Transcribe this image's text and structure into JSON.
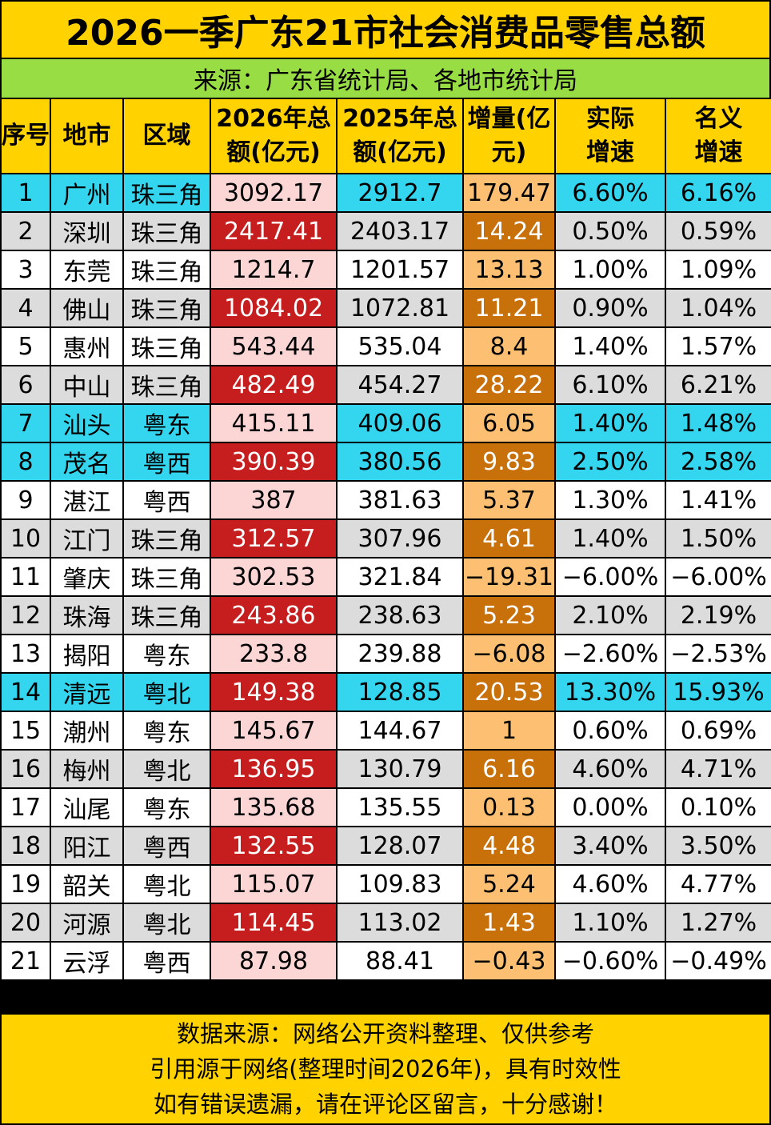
{
  "title": "2026一季广东21市社会消费品零售总额",
  "source": "来源：广东省统计局、各地市统计局",
  "headers": {
    "index": "序号",
    "city": "地市",
    "region": "区域",
    "total_2026": "2026年总额(亿元)",
    "total_2025": "2025年总额(亿元)",
    "increase": "增量(亿元)",
    "real_growth": "实际增速",
    "nominal_growth": "名义增速"
  },
  "rows": [
    {
      "no": "1",
      "city": "广州",
      "region": "珠三角",
      "v2026": "3092.17",
      "v2025": "2912.7",
      "inc": "179.47",
      "real": "6.60%",
      "nominal": "6.16%"
    },
    {
      "no": "2",
      "city": "深圳",
      "region": "珠三角",
      "v2026": "2417.41",
      "v2025": "2403.17",
      "inc": "14.24",
      "real": "0.50%",
      "nominal": "0.59%"
    },
    {
      "no": "3",
      "city": "东莞",
      "region": "珠三角",
      "v2026": "1214.7",
      "v2025": "1201.57",
      "inc": "13.13",
      "real": "1.00%",
      "nominal": "1.09%"
    },
    {
      "no": "4",
      "city": "佛山",
      "region": "珠三角",
      "v2026": "1084.02",
      "v2025": "1072.81",
      "inc": "11.21",
      "real": "0.90%",
      "nominal": "1.04%"
    },
    {
      "no": "5",
      "city": "惠州",
      "region": "珠三角",
      "v2026": "543.44",
      "v2025": "535.04",
      "inc": "8.4",
      "real": "1.40%",
      "nominal": "1.57%"
    },
    {
      "no": "6",
      "city": "中山",
      "region": "珠三角",
      "v2026": "482.49",
      "v2025": "454.27",
      "inc": "28.22",
      "real": "6.10%",
      "nominal": "6.21%"
    },
    {
      "no": "7",
      "city": "汕头",
      "region": "粤东",
      "v2026": "415.11",
      "v2025": "409.06",
      "inc": "6.05",
      "real": "1.40%",
      "nominal": "1.48%"
    },
    {
      "no": "8",
      "city": "茂名",
      "region": "粤西",
      "v2026": "390.39",
      "v2025": "380.56",
      "inc": "9.83",
      "real": "2.50%",
      "nominal": "2.58%"
    },
    {
      "no": "9",
      "city": "湛江",
      "region": "粤西",
      "v2026": "387",
      "v2025": "381.63",
      "inc": "5.37",
      "real": "1.30%",
      "nominal": "1.41%"
    },
    {
      "no": "10",
      "city": "江门",
      "region": "珠三角",
      "v2026": "312.57",
      "v2025": "307.96",
      "inc": "4.61",
      "real": "1.40%",
      "nominal": "1.50%"
    },
    {
      "no": "11",
      "city": "肇庆",
      "region": "珠三角",
      "v2026": "302.53",
      "v2025": "321.84",
      "inc": "−19.31",
      "real": "−6.00%",
      "nominal": "−6.00%"
    },
    {
      "no": "12",
      "city": "珠海",
      "region": "珠三角",
      "v2026": "243.86",
      "v2025": "238.63",
      "inc": "5.23",
      "real": "2.10%",
      "nominal": "2.19%"
    },
    {
      "no": "13",
      "city": "揭阳",
      "region": "粤东",
      "v2026": "233.8",
      "v2025": "239.88",
      "inc": "−6.08",
      "real": "−2.60%",
      "nominal": "−2.53%"
    },
    {
      "no": "14",
      "city": "清远",
      "region": "粤北",
      "v2026": "149.38",
      "v2025": "128.85",
      "inc": "20.53",
      "real": "13.30%",
      "nominal": "15.93%"
    },
    {
      "no": "15",
      "city": "潮州",
      "region": "粤东",
      "v2026": "145.67",
      "v2025": "144.67",
      "inc": "1",
      "real": "0.60%",
      "nominal": "0.69%"
    },
    {
      "no": "16",
      "city": "梅州",
      "region": "粤北",
      "v2026": "136.95",
      "v2025": "130.79",
      "inc": "6.16",
      "real": "4.60%",
      "nominal": "4.71%"
    },
    {
      "no": "17",
      "city": "汕尾",
      "region": "粤东",
      "v2026": "135.68",
      "v2025": "135.55",
      "inc": "0.13",
      "real": "0.00%",
      "nominal": "0.10%"
    },
    {
      "no": "18",
      "city": "阳江",
      "region": "粤西",
      "v2026": "132.55",
      "v2025": "128.07",
      "inc": "4.48",
      "real": "3.40%",
      "nominal": "3.50%"
    },
    {
      "no": "19",
      "city": "韶关",
      "region": "粤北",
      "v2026": "115.07",
      "v2025": "109.83",
      "inc": "5.24",
      "real": "4.60%",
      "nominal": "4.77%"
    },
    {
      "no": "20",
      "city": "河源",
      "region": "粤北",
      "v2026": "114.45",
      "v2025": "113.02",
      "inc": "1.43",
      "real": "1.10%",
      "nominal": "1.27%"
    },
    {
      "no": "21",
      "city": "云浮",
      "region": "粤西",
      "v2026": "87.98",
      "v2025": "88.41",
      "inc": "−0.43",
      "real": "−0.60%",
      "nominal": "−0.49%"
    }
  ],
  "footer": {
    "line1": "数据来源：网络公开资料整理、仅供参考",
    "line2": "引用源于网络(整理时间2026年)，具有时效性",
    "line3": "如有错误遗漏，请在评论区留言，十分感谢！"
  },
  "colors": {
    "header_yellow": "#ffd200",
    "source_green": "#99dd44",
    "row_cyan": "#33d6ee",
    "row_grey": "#dcdcdc",
    "cell_pink": "#fcd5d5",
    "cell_red": "#c61d1f",
    "cell_orange_light": "#fdbf72",
    "cell_orange_dark": "#c8700a"
  }
}
